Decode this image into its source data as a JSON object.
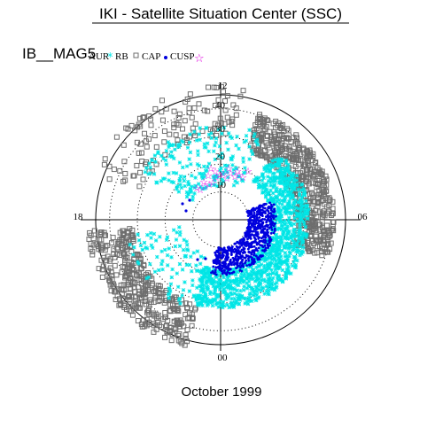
{
  "header": {
    "title": "IKI - Satellite Situation Center (SSC)"
  },
  "probe_label": "IB__MAG5",
  "footer": {
    "date_label": "October 1999"
  },
  "chart_data": {
    "type": "scatter",
    "projection": "polar",
    "radial_ticks": [
      "10",
      "20",
      "30",
      "40"
    ],
    "radial_range": [
      0,
      45
    ],
    "angle_labels": [
      "12",
      "06",
      "00",
      "18"
    ],
    "legend": [
      "AUR",
      "RB",
      "CAP",
      "CUSP"
    ],
    "series": [
      {
        "name": "AUR",
        "color": "#00e6e6",
        "marker": "asterisk"
      },
      {
        "name": "RB",
        "color": "#6e6e6e",
        "marker": "square"
      },
      {
        "name": "CAP",
        "color": "#0000dd",
        "marker": "dot"
      },
      {
        "name": "CUSP",
        "color": "#e000e0",
        "marker": "star"
      }
    ],
    "grid": true
  },
  "colors": {
    "aur": "#00e6e6",
    "rb": "#6e6e6e",
    "cap": "#0000dd",
    "cusp": "#e000e0"
  }
}
